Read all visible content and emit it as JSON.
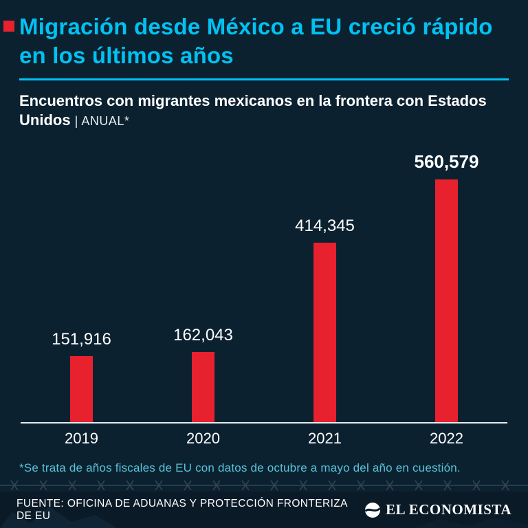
{
  "header": {
    "title": "Migración desde México a EU creció rápido en los últimos años",
    "subtitle_bold": "Encuentros con migrantes mexicanos en la frontera con Estados Unidos ",
    "subtitle_note": "| ANUAL*"
  },
  "chart_data": {
    "type": "bar",
    "categories": [
      "2019",
      "2020",
      "2021",
      "2022"
    ],
    "values": [
      151916,
      162043,
      414345,
      560579
    ],
    "labels": [
      "151,916",
      "162,043",
      "414,345",
      "560,579"
    ],
    "series": [
      {
        "name": "Encuentros con migrantes mexicanos",
        "values": [
          151916,
          162043,
          414345,
          560579
        ]
      }
    ],
    "title": "Migración desde México a EU creció rápido en los últimos años",
    "subtitle": "Encuentros con migrantes mexicanos en la frontera con Estados Unidos | ANUAL*",
    "xlabel": "",
    "ylabel": "",
    "ylim": [
      0,
      560579
    ],
    "grid": false,
    "legend": false,
    "bar_color": "#e8212e",
    "highlight_index": 3
  },
  "footnote": "*Se trata de años fiscales de EU con datos de octubre a mayo del año en cuestión.",
  "footer": {
    "source": "FUENTE: OFICINA DE ADUANAS Y PROTECCIÓN FRONTERIZA DE EU",
    "brand": "EL ECONOMISTA"
  },
  "colors": {
    "background": "#0c2130",
    "accent_cyan": "#00c2f2",
    "bar_red": "#e8212e",
    "footnote_teal": "#58c4d8",
    "footer_background": "#0a1a27",
    "axis_line": "#e6ecf1"
  },
  "icons": {
    "brand_icon": "el-economista-globe-icon"
  }
}
